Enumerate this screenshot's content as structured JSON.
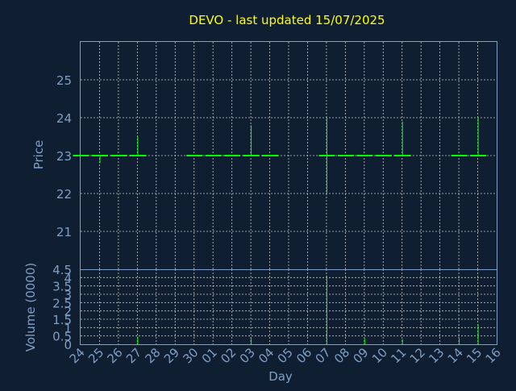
{
  "chart_data": {
    "type": "candlestick",
    "title": "DEVO - last updated 15/07/2025",
    "xlabel": "Day",
    "x_ticks": [
      "24",
      "25",
      "26",
      "27",
      "28",
      "29",
      "30",
      "01",
      "02",
      "03",
      "04",
      "05",
      "06",
      "07",
      "08",
      "09",
      "10",
      "11",
      "12",
      "13",
      "14",
      "15",
      "16"
    ],
    "grid": true,
    "colors": {
      "background": "#0f1e30",
      "text": "#7f9fc8",
      "title": "#ffff00",
      "series": "#00ff00",
      "grid": "#c8c8c8"
    },
    "price": {
      "ylabel": "Price",
      "ylim": [
        20,
        26
      ],
      "y_ticks": [
        21,
        22,
        23,
        24,
        25
      ],
      "data": [
        {
          "x": 0,
          "low": 23,
          "high": 23
        },
        {
          "x": 1,
          "low": 22.8,
          "high": 23
        },
        {
          "x": 2,
          "low": 23,
          "high": 23
        },
        {
          "x": 3,
          "low": 23,
          "high": 23.5
        },
        {
          "x": 6,
          "low": 23,
          "high": 23
        },
        {
          "x": 7,
          "low": 23,
          "high": 23
        },
        {
          "x": 8,
          "low": 23,
          "high": 23
        },
        {
          "x": 9,
          "low": 23,
          "high": 23.8
        },
        {
          "x": 10,
          "low": 23,
          "high": 23
        },
        {
          "x": 13,
          "low": 22,
          "high": 24
        },
        {
          "x": 14,
          "low": 23,
          "high": 23
        },
        {
          "x": 15,
          "low": 23,
          "high": 23
        },
        {
          "x": 16,
          "low": 23,
          "high": 23
        },
        {
          "x": 17,
          "low": 23,
          "high": 23.9
        },
        {
          "x": 20,
          "low": 23,
          "high": 23
        },
        {
          "x": 21,
          "low": 23,
          "high": 24
        }
      ]
    },
    "volume": {
      "ylabel": "Volume (0000)",
      "ylim": [
        0,
        4.5
      ],
      "y_ticks": [
        "0",
        "0.5",
        "1",
        "1.5",
        "2",
        "2.5",
        "3",
        "3.5",
        "4",
        "4.5"
      ],
      "values": [
        {
          "x": 3,
          "v": 0.45
        },
        {
          "x": 9,
          "v": 0.4
        },
        {
          "x": 13,
          "v": 4.1
        },
        {
          "x": 15,
          "v": 0.35
        },
        {
          "x": 17,
          "v": 0.3
        },
        {
          "x": 20,
          "v": 0.35
        },
        {
          "x": 21,
          "v": 1.2
        }
      ]
    }
  }
}
